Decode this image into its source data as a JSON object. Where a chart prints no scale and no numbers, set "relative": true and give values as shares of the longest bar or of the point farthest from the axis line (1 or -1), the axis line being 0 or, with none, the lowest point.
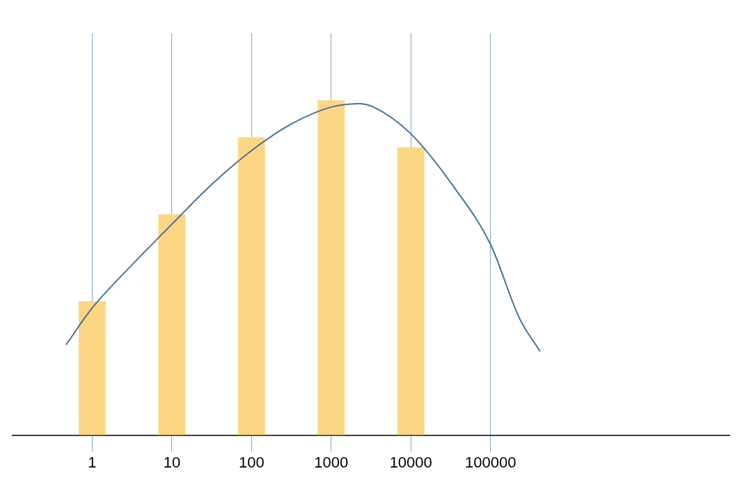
{
  "chart_data": {
    "type": "bar",
    "relative": true,
    "log": "x",
    "xlim": [
      0.1,
      100000000
    ],
    "xticks": [
      1,
      10,
      100,
      1000,
      10000,
      100000
    ],
    "grid": "x",
    "tick_labels": "x",
    "marker": "none",
    "series": [
      {
        "color": "#fdd684",
        "x": [
          1,
          10,
          100,
          1000,
          10000
        ],
        "values": [
          0.4,
          0.66,
          0.89,
          1,
          0.86
        ]
      },
      {
        "type": "line",
        "color": "#41719c",
        "x": [
          0.47,
          1,
          3.2,
          10,
          32,
          100,
          320,
          1000,
          2200,
          3400,
          10000,
          35000,
          100000,
          230000,
          420000
        ],
        "values": [
          0.27,
          0.38,
          0.51,
          0.63,
          0.75,
          0.85,
          0.93,
          0.98,
          0.99,
          0.98,
          0.9,
          0.74,
          0.57,
          0.35,
          0.25
        ]
      }
    ]
  }
}
